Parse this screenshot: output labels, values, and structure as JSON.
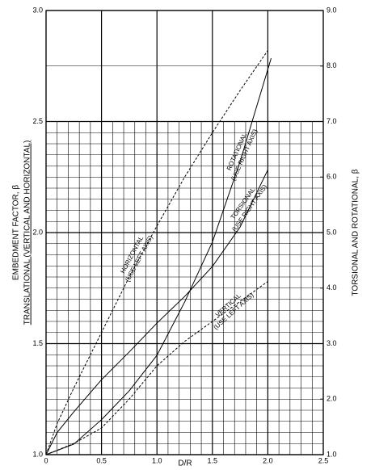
{
  "chart_data": {
    "type": "line",
    "ylabel": "EMBEDMENT FACTOR, β",
    "ylabel2": "TRANSLATIONAL (VERTICAL AND HORIZONTAL)",
    "y2label": "TORSIONAL AND ROTATIONAL, β",
    "xlabel": "D/R",
    "xlim": [
      0,
      2.5
    ],
    "xticks": [
      0,
      0.5,
      {
        "value": 1,
        "label": "1.0"
      },
      1.5,
      {
        "value": 2,
        "label": "2.0"
      },
      2.5
    ],
    "ylim": [
      1,
      3
    ],
    "yticks": [
      {
        "value": 1,
        "label": "1.0"
      },
      1.5,
      {
        "value": 2,
        "label": "2.0"
      },
      2.5,
      {
        "value": 3,
        "label": "3.0"
      }
    ],
    "y2lim": [
      1,
      9
    ],
    "y2ticks": [
      {
        "value": 1,
        "label": "1.0"
      },
      {
        "value": 2,
        "label": "2.0"
      },
      {
        "value": 3,
        "label": "3.0"
      },
      {
        "value": 4,
        "label": "4.0"
      },
      {
        "value": 5,
        "label": "5.0"
      },
      {
        "value": 6,
        "label": "6.0"
      },
      {
        "value": 7,
        "label": "7.0"
      },
      {
        "value": 8,
        "label": "8.0"
      },
      {
        "value": 9,
        "label": "9.0"
      }
    ],
    "grid": true,
    "series": [
      {
        "name": "HORIZONTAL",
        "label": "(USE LEFT AXIS)",
        "color": "#000000",
        "dash": true,
        "x": [
          0,
          0.1,
          0.25,
          0.5,
          0.75,
          1.0,
          1.25,
          1.5,
          1.75,
          2.0
        ],
        "values": [
          1.0,
          1.14,
          1.3,
          1.55,
          1.8,
          2.03,
          2.25,
          2.45,
          2.64,
          2.82
        ]
      },
      {
        "name": "ROTATIONAL",
        "label": "(USE RIGHT AXIS)",
        "color": "#000000",
        "dash": false,
        "axis": "y2",
        "x": [
          0,
          0.25,
          0.5,
          0.75,
          1.0,
          1.25,
          1.5,
          1.75,
          2.03
        ],
        "values": [
          1.0,
          1.19,
          1.63,
          2.15,
          2.79,
          3.75,
          4.83,
          6.28,
          8.14
        ]
      },
      {
        "name": "TORSIONAL",
        "label": "(USE RIGHT AXIS)",
        "color": "#000000",
        "dash": false,
        "axis": "y2",
        "x": [
          0,
          0.1,
          0.25,
          0.5,
          0.75,
          1.0,
          1.25,
          1.5,
          1.75,
          2.0
        ],
        "values": [
          1.0,
          1.4,
          1.77,
          2.35,
          2.85,
          3.37,
          3.85,
          4.39,
          5.1,
          6.13
        ]
      },
      {
        "name": "VERTICAL",
        "label": "(USE LEFT AXIS)",
        "color": "#000000",
        "dash": true,
        "x": [
          0,
          0.25,
          0.5,
          0.75,
          1.0,
          1.25,
          1.5,
          1.75,
          2.0
        ],
        "values": [
          1.0,
          1.05,
          1.12,
          1.25,
          1.4,
          1.51,
          1.6,
          1.69,
          1.78
        ]
      }
    ]
  }
}
